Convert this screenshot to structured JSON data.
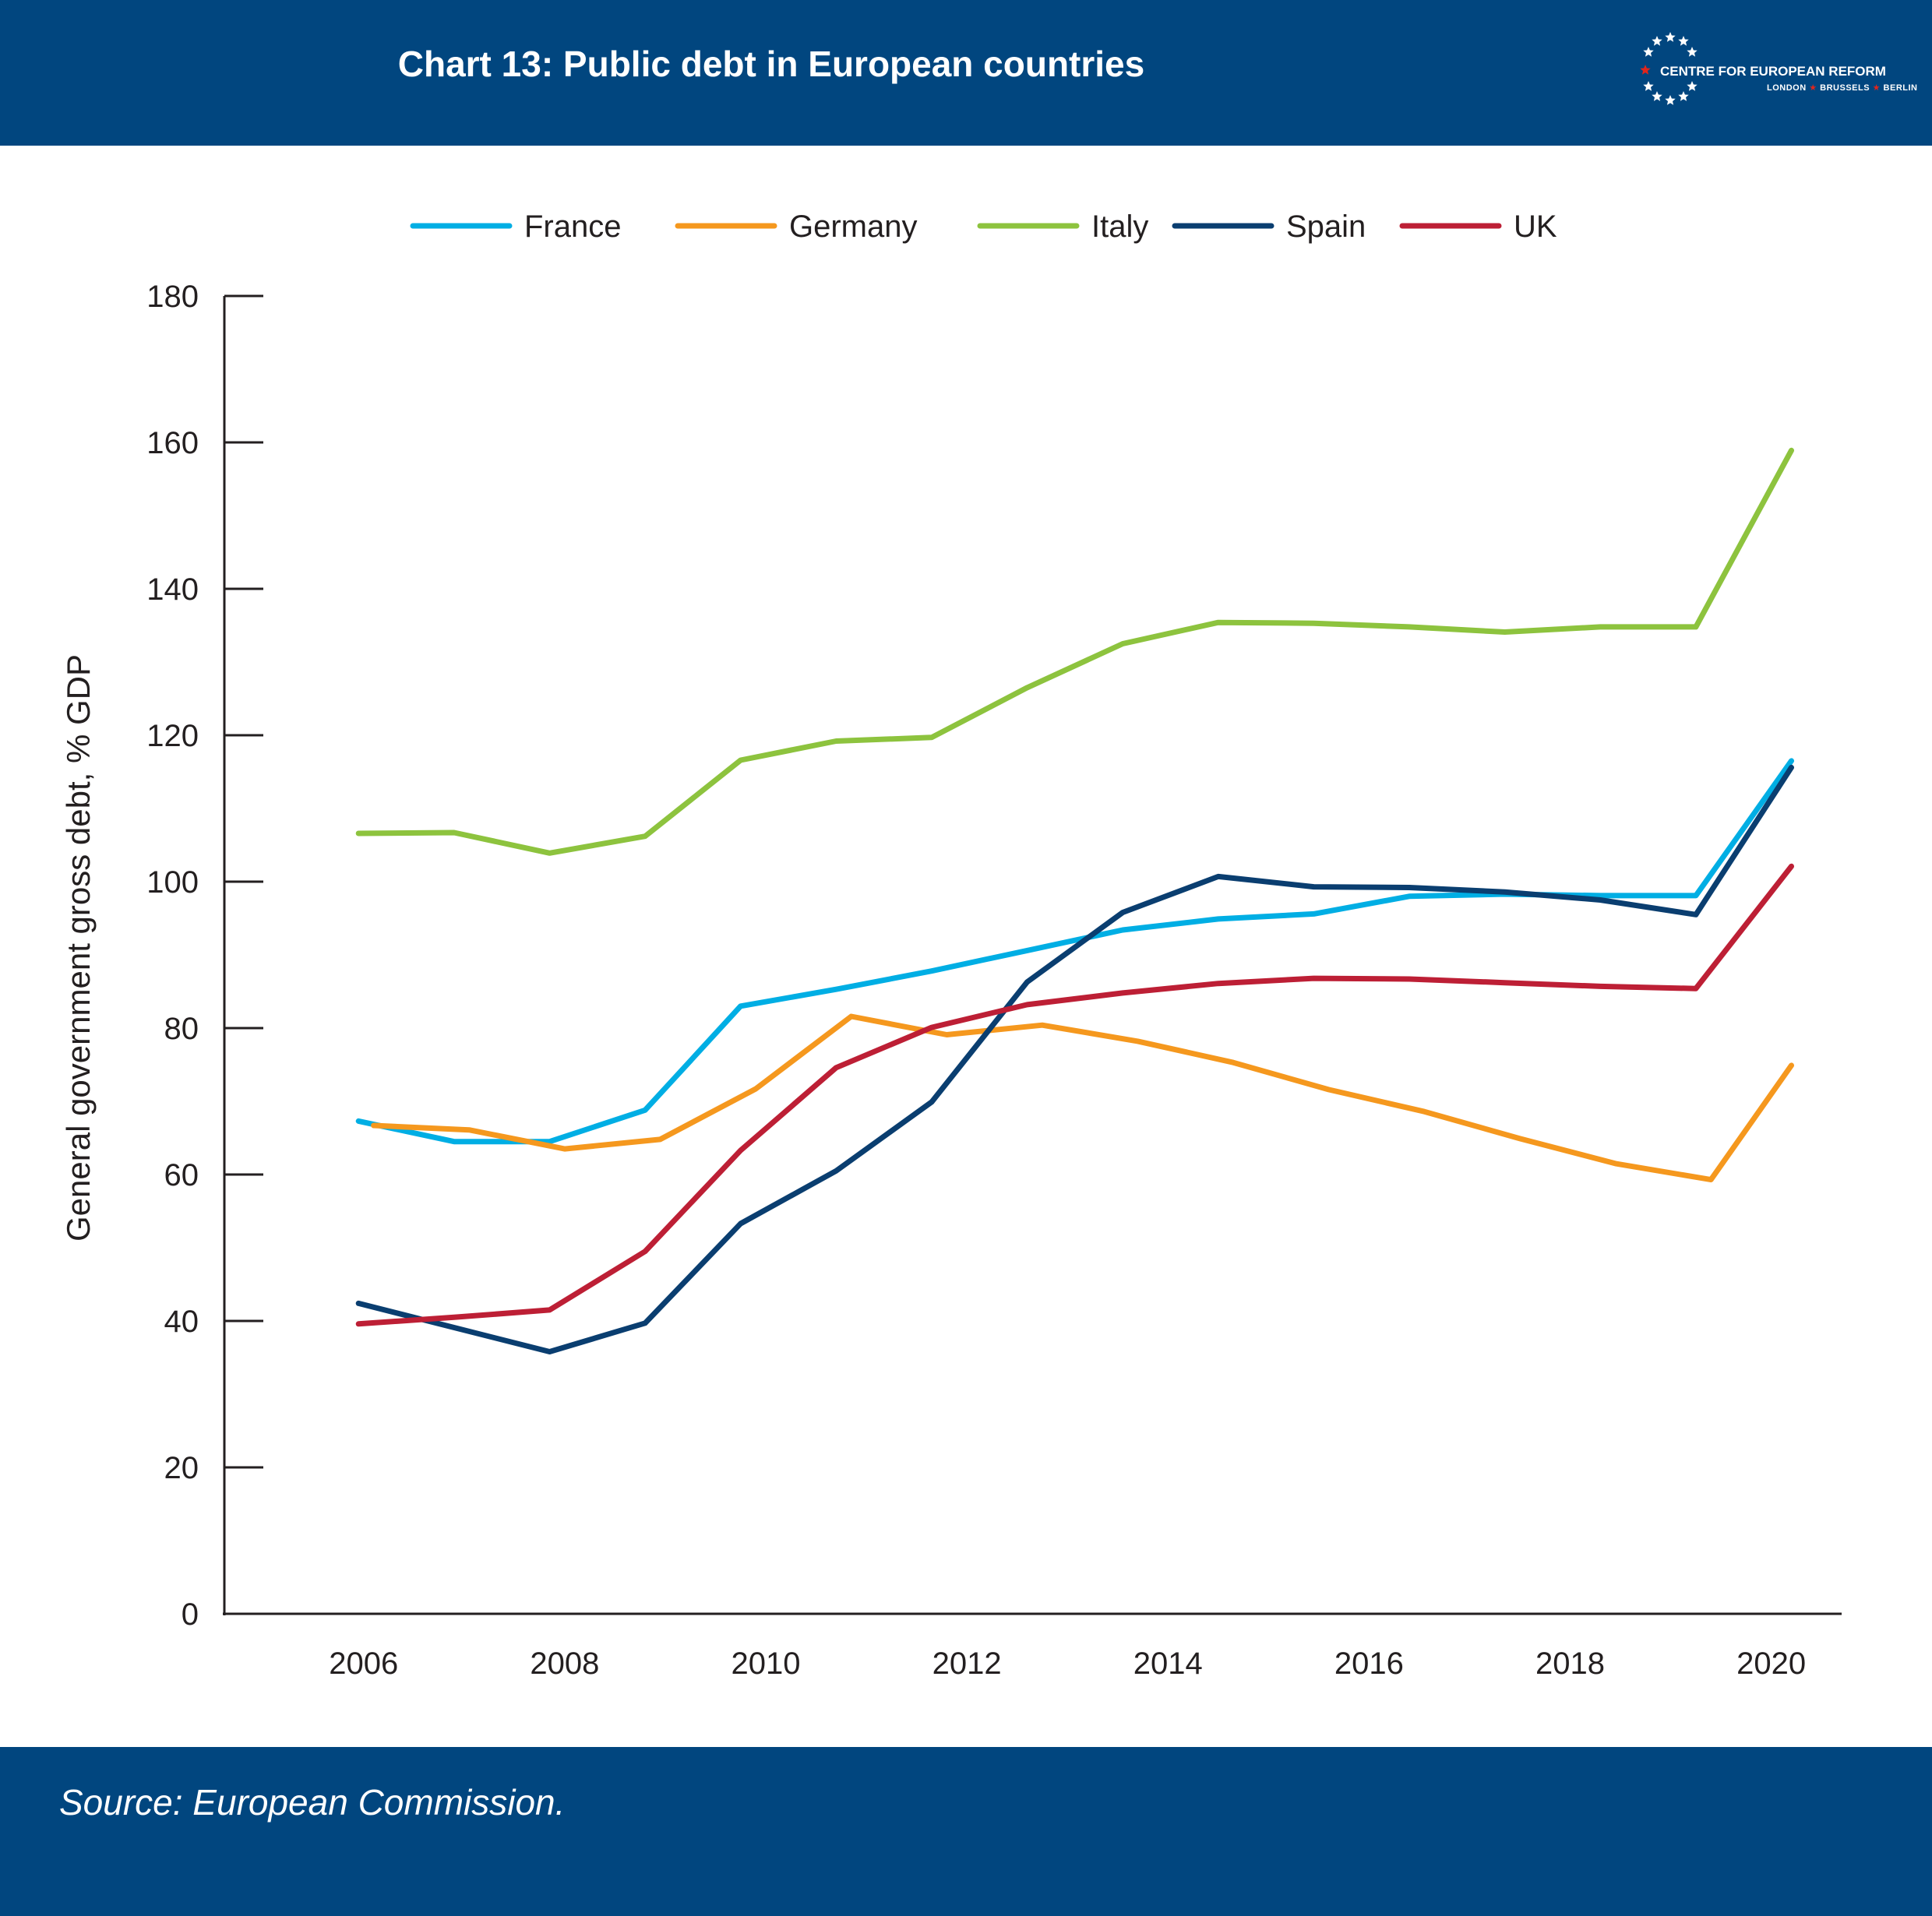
{
  "header": {
    "title": "Chart 13: Public debt in European countries",
    "logo_name": "CENTRE FOR EUROPEAN REFORM",
    "logo_cities": [
      "LONDON",
      "BRUSSELS",
      "BERLIN"
    ]
  },
  "footer": {
    "source": "Source: European Commission."
  },
  "colors": {
    "header_bg": "#01467f",
    "France": "#00aee4",
    "Germany": "#f5981e",
    "Italy": "#8dc33e",
    "Spain": "#0a3e70",
    "UK": "#bd1f35",
    "logo_star_accent": "#e1251b"
  },
  "chart_data": {
    "type": "line",
    "title": "",
    "xlabel": "",
    "ylabel": "General government gross debt, % GDP",
    "x_ticks": [
      "2006",
      "2008",
      "2010",
      "2012",
      "2014",
      "2016",
      "2018",
      "2020"
    ],
    "x": [
      2005.95,
      2006.9,
      2007.85,
      2008.8,
      2009.75,
      2010.7,
      2011.65,
      2012.6,
      2013.55,
      2014.5,
      2015.45,
      2016.4,
      2017.35,
      2018.3,
      2019.25,
      2020.2
    ],
    "y_ticks": [
      0,
      20,
      40,
      60,
      80,
      100,
      120,
      140,
      160,
      180
    ],
    "ylim": [
      0,
      180
    ],
    "xlim": [
      2004.6,
      2020.7
    ],
    "legend_position": "top",
    "grid": false,
    "series": [
      {
        "name": "France",
        "x": [
          2005.95,
          2006.9,
          2007.85,
          2008.8,
          2009.75,
          2010.7,
          2011.65,
          2012.6,
          2013.55,
          2014.5,
          2015.45,
          2016.4,
          2017.35,
          2018.3,
          2019.25,
          2020.2
        ],
        "values": [
          67.3,
          64.5,
          64.5,
          68.8,
          83.0,
          85.3,
          87.8,
          90.6,
          93.4,
          94.9,
          95.6,
          98.0,
          98.3,
          98.1,
          98.1,
          116.5
        ]
      },
      {
        "name": "Germany",
        "x": [
          2006.1,
          2007.05,
          2008.0,
          2008.95,
          2009.9,
          2010.85,
          2011.8,
          2012.75,
          2013.7,
          2014.65,
          2015.6,
          2016.55,
          2017.5,
          2018.45,
          2019.4,
          2020.2
        ],
        "values": [
          66.7,
          66.1,
          63.5,
          64.8,
          71.7,
          81.6,
          79.1,
          80.4,
          78.2,
          75.3,
          71.6,
          68.6,
          64.9,
          61.5,
          59.3,
          74.9
        ]
      },
      {
        "name": "Italy",
        "x": [
          2005.95,
          2006.9,
          2007.85,
          2008.8,
          2009.75,
          2010.7,
          2011.65,
          2012.6,
          2013.55,
          2014.5,
          2015.45,
          2016.4,
          2017.35,
          2018.3,
          2019.25,
          2020.2
        ],
        "values": [
          106.6,
          106.7,
          103.9,
          106.2,
          116.6,
          119.2,
          119.7,
          126.5,
          132.5,
          135.4,
          135.3,
          134.8,
          134.1,
          134.8,
          134.8,
          158.9
        ]
      },
      {
        "name": "Spain",
        "x": [
          2005.95,
          2006.9,
          2007.85,
          2008.8,
          2009.75,
          2010.7,
          2011.65,
          2012.6,
          2013.55,
          2014.5,
          2015.45,
          2016.4,
          2017.35,
          2018.3,
          2019.25,
          2020.2
        ],
        "values": [
          42.4,
          39.1,
          35.8,
          39.7,
          53.3,
          60.5,
          69.9,
          86.3,
          95.8,
          100.7,
          99.3,
          99.2,
          98.6,
          97.5,
          95.5,
          115.6
        ]
      },
      {
        "name": "UK",
        "x": [
          2005.95,
          2006.9,
          2007.85,
          2008.8,
          2009.75,
          2010.7,
          2011.65,
          2012.6,
          2013.55,
          2014.5,
          2015.45,
          2016.4,
          2017.35,
          2018.3,
          2019.25,
          2020.2
        ],
        "values": [
          39.6,
          40.5,
          41.5,
          49.5,
          63.3,
          74.6,
          80.1,
          83.2,
          84.8,
          86.1,
          86.8,
          86.7,
          86.2,
          85.7,
          85.4,
          102.1
        ]
      }
    ]
  }
}
